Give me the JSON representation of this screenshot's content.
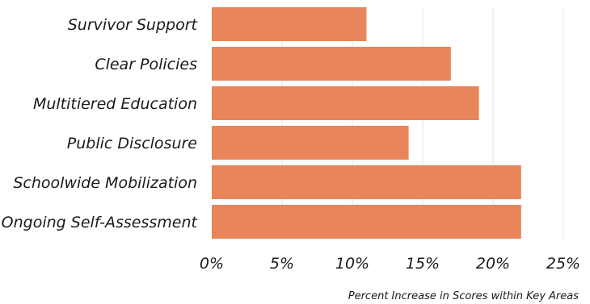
{
  "chart_data": {
    "type": "bar",
    "orientation": "horizontal",
    "categories": [
      "Survivor Support",
      "Clear Policies",
      "Multitiered Education",
      "Public Disclosure",
      "Schoolwide Mobilization",
      "Ongoing Self-Assessment"
    ],
    "values": [
      11,
      17,
      19,
      14,
      22,
      22
    ],
    "xticks": [
      "0%",
      "5%",
      "10%",
      "15%",
      "20%",
      "25%"
    ],
    "xlim": [
      0,
      25
    ],
    "xlabel": "Percent Increase in Scores within Key Areas",
    "grid": "vertical",
    "bar_color": "#e8855a"
  }
}
